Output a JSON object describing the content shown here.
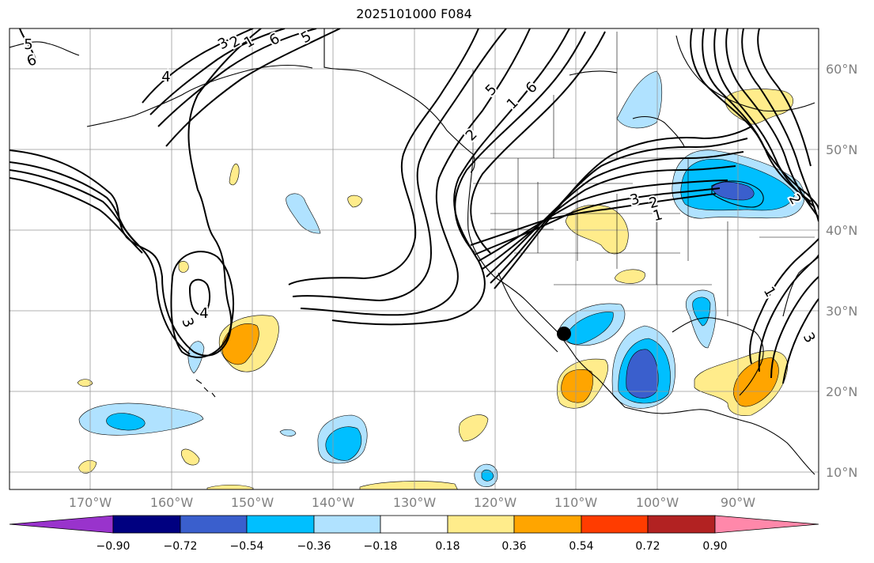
{
  "title": "2025101000 F084",
  "lat_labels": [
    "60°N",
    "50°N",
    "40°N",
    "30°N",
    "20°N",
    "10°N"
  ],
  "lon_labels": [
    "170°W",
    "160°W",
    "150°W",
    "140°W",
    "130°W",
    "120°W",
    "110°W",
    "100°W",
    "90°W"
  ],
  "colorbar": {
    "ticks": [
      "−0.90",
      "−0.72",
      "−0.54",
      "−0.36",
      "−0.18",
      "0.18",
      "0.36",
      "0.54",
      "0.72",
      "0.90"
    ],
    "colors": [
      "#9933cc",
      "#000080",
      "#3a5fcd",
      "#00bfff",
      "#b0e2ff",
      "#ffffff",
      "#ffec8b",
      "#ffa500",
      "#ff3c00",
      "#b22222",
      "#ff88aa"
    ]
  },
  "contour_labels": [
    "6",
    "5",
    "4",
    "3",
    "2",
    "1",
    "6",
    "5",
    "4",
    "3",
    "2",
    "1",
    "3",
    "2",
    "1",
    "2",
    "3",
    "1",
    "6",
    "5"
  ]
}
